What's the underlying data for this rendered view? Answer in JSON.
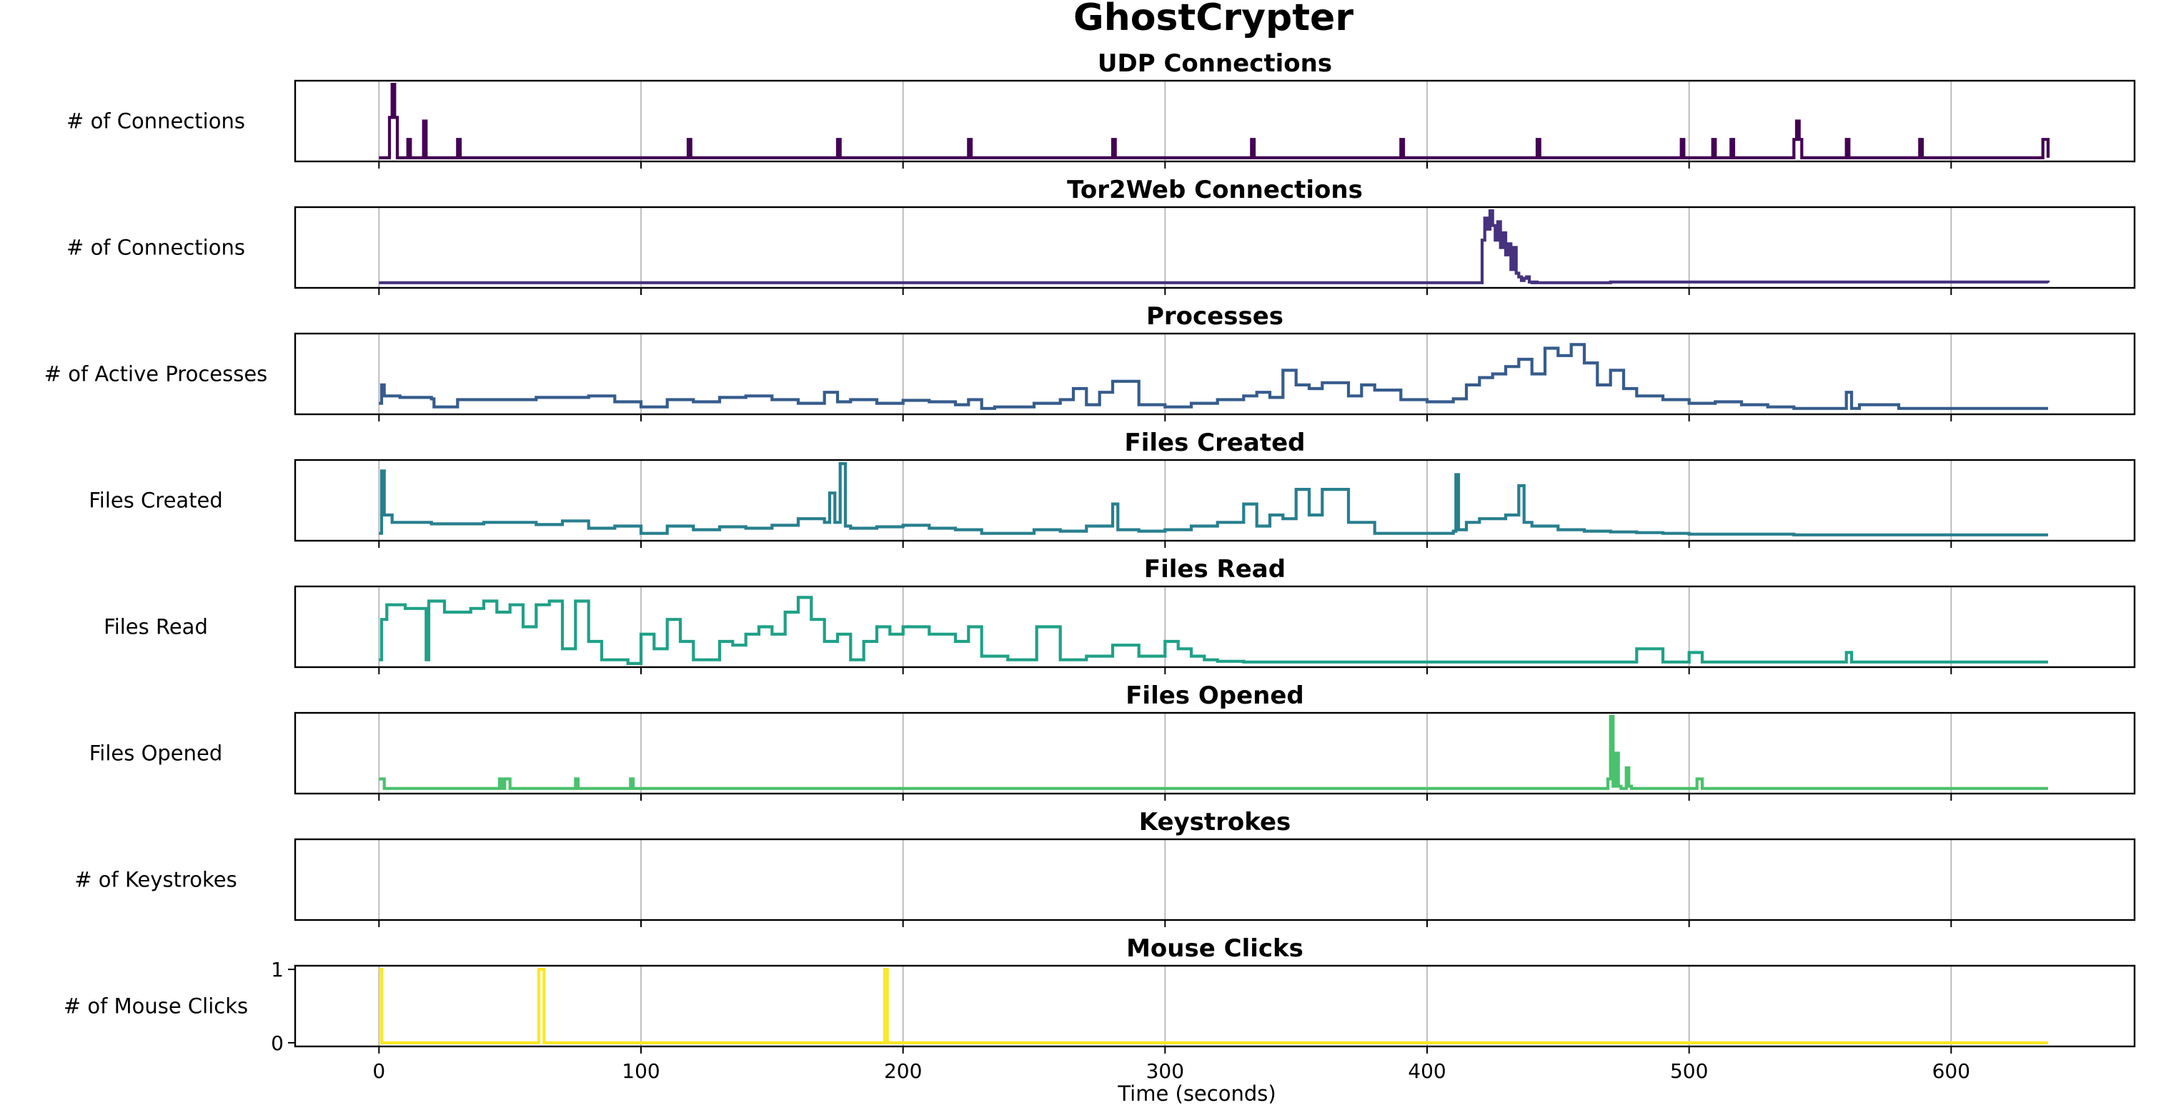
{
  "figure": {
    "title": "GhostCrypter",
    "xlabel": "Time (seconds)",
    "xlim": [
      -32,
      670
    ],
    "xticks": [
      0,
      100,
      200,
      300,
      400,
      500,
      600
    ],
    "grid": true,
    "sharex": true
  },
  "chart_data": [
    {
      "type": "line",
      "title": "UDP Connections",
      "ylabel": "# of Connections",
      "color": "#440154",
      "ylim": [
        -0.05,
        1.05
      ],
      "x": [
        0,
        4,
        5,
        6,
        7,
        11,
        12,
        17,
        18,
        30,
        31,
        118,
        119,
        175,
        176,
        225,
        226,
        280,
        281,
        333,
        334,
        390,
        391,
        442,
        443,
        497,
        498,
        509,
        510,
        516,
        517,
        540,
        541,
        542,
        543,
        544,
        560,
        561,
        588,
        589,
        635,
        636,
        637
      ],
      "values": [
        0,
        0.55,
        1,
        0.55,
        0,
        0.25,
        0,
        0.5,
        0,
        0.25,
        0,
        0.25,
        0,
        0.25,
        0,
        0.25,
        0,
        0.25,
        0,
        0.25,
        0,
        0.25,
        0,
        0.25,
        0,
        0.25,
        0,
        0.25,
        0,
        0.25,
        0,
        0.25,
        0.5,
        0.25,
        0,
        0,
        0.25,
        0,
        0.25,
        0,
        0.25,
        0.25,
        0
      ]
    },
    {
      "type": "line",
      "title": "Tor2Web Connections",
      "ylabel": "# of Connections",
      "color": "#46327e",
      "ylim": [
        -0.05,
        1.05
      ],
      "x": [
        0,
        420,
        421,
        422,
        423,
        424,
        425,
        426,
        427,
        428,
        429,
        430,
        431,
        432,
        433,
        434,
        435,
        436,
        437,
        438,
        439,
        440,
        441,
        442,
        443,
        470,
        637
      ],
      "values": [
        0.02,
        0.02,
        0.6,
        0.9,
        0.75,
        1.0,
        0.8,
        0.6,
        0.85,
        0.5,
        0.7,
        0.4,
        0.55,
        0.2,
        0.5,
        0.15,
        0.1,
        0.05,
        0.08,
        0.1,
        0.03,
        0.02,
        0.03,
        0.02,
        0.02,
        0.03,
        0.02
      ]
    },
    {
      "type": "line",
      "title": "Processes",
      "ylabel": "# of Active Processes",
      "color": "#365c8d",
      "ylim": [
        -0.05,
        1.05
      ],
      "x": [
        0,
        1,
        2,
        8,
        20,
        21,
        30,
        60,
        80,
        90,
        100,
        110,
        120,
        130,
        140,
        150,
        160,
        170,
        175,
        180,
        190,
        200,
        210,
        220,
        225,
        230,
        235,
        250,
        260,
        265,
        270,
        275,
        280,
        290,
        300,
        310,
        320,
        330,
        335,
        340,
        345,
        350,
        355,
        360,
        370,
        375,
        380,
        390,
        400,
        410,
        415,
        420,
        425,
        430,
        435,
        440,
        445,
        450,
        455,
        460,
        465,
        470,
        475,
        480,
        490,
        500,
        510,
        520,
        530,
        540,
        560,
        562,
        565,
        580,
        600,
        637
      ],
      "values": [
        0.1,
        0.35,
        0.2,
        0.18,
        0.16,
        0.05,
        0.15,
        0.18,
        0.2,
        0.12,
        0.05,
        0.15,
        0.12,
        0.18,
        0.2,
        0.15,
        0.1,
        0.25,
        0.12,
        0.15,
        0.1,
        0.14,
        0.12,
        0.08,
        0.15,
        0.03,
        0.05,
        0.1,
        0.15,
        0.3,
        0.08,
        0.25,
        0.4,
        0.08,
        0.05,
        0.1,
        0.15,
        0.2,
        0.25,
        0.18,
        0.55,
        0.35,
        0.3,
        0.38,
        0.2,
        0.35,
        0.28,
        0.15,
        0.12,
        0.16,
        0.35,
        0.45,
        0.5,
        0.6,
        0.7,
        0.5,
        0.85,
        0.75,
        0.9,
        0.65,
        0.35,
        0.55,
        0.3,
        0.2,
        0.15,
        0.1,
        0.12,
        0.08,
        0.05,
        0.03,
        0.25,
        0.03,
        0.08,
        0.03,
        0.03,
        0.03
      ]
    },
    {
      "type": "line",
      "title": "Files Created",
      "ylabel": "Files Created",
      "color": "#277f8e",
      "ylim": [
        -0.05,
        1.05
      ],
      "x": [
        0,
        1,
        2,
        5,
        20,
        40,
        60,
        70,
        80,
        90,
        100,
        110,
        120,
        130,
        140,
        150,
        160,
        170,
        172,
        174,
        176,
        178,
        180,
        190,
        200,
        210,
        220,
        230,
        240,
        250,
        260,
        270,
        280,
        282,
        290,
        300,
        310,
        320,
        330,
        335,
        340,
        345,
        350,
        355,
        360,
        370,
        380,
        390,
        400,
        410,
        411,
        412,
        415,
        420,
        430,
        435,
        437,
        440,
        450,
        460,
        470,
        480,
        490,
        500,
        520,
        540,
        560,
        580,
        600,
        637
      ],
      "values": [
        0.05,
        0.9,
        0.3,
        0.2,
        0.18,
        0.2,
        0.17,
        0.22,
        0.12,
        0.15,
        0.05,
        0.15,
        0.1,
        0.14,
        0.12,
        0.16,
        0.25,
        0.2,
        0.6,
        0.2,
        1.0,
        0.15,
        0.12,
        0.14,
        0.16,
        0.12,
        0.1,
        0.05,
        0.05,
        0.1,
        0.08,
        0.15,
        0.45,
        0.1,
        0.08,
        0.1,
        0.15,
        0.2,
        0.45,
        0.15,
        0.3,
        0.25,
        0.65,
        0.3,
        0.65,
        0.2,
        0.05,
        0.05,
        0.05,
        0.08,
        0.85,
        0.1,
        0.2,
        0.25,
        0.3,
        0.7,
        0.2,
        0.15,
        0.1,
        0.08,
        0.07,
        0.06,
        0.05,
        0.04,
        0.04,
        0.03,
        0.03,
        0.03,
        0.03,
        0.03
      ]
    },
    {
      "type": "line",
      "title": "Files Read",
      "ylabel": "Files Read",
      "color": "#1fa187",
      "ylim": [
        -0.05,
        1.05
      ],
      "x": [
        0,
        1,
        3,
        10,
        18,
        19,
        25,
        35,
        40,
        45,
        50,
        55,
        60,
        65,
        70,
        75,
        80,
        85,
        95,
        100,
        105,
        110,
        115,
        120,
        130,
        135,
        140,
        145,
        150,
        155,
        160,
        165,
        170,
        175,
        180,
        185,
        190,
        195,
        200,
        210,
        220,
        225,
        230,
        240,
        250,
        251,
        260,
        270,
        280,
        290,
        300,
        305,
        310,
        315,
        320,
        330,
        340,
        360,
        400,
        430,
        460,
        470,
        480,
        490,
        500,
        505,
        510,
        540,
        560,
        562,
        600,
        637
      ],
      "values": [
        0.05,
        0.6,
        0.8,
        0.75,
        0.05,
        0.85,
        0.7,
        0.75,
        0.85,
        0.7,
        0.8,
        0.5,
        0.8,
        0.85,
        0.2,
        0.85,
        0.3,
        0.05,
        0.0,
        0.4,
        0.2,
        0.6,
        0.3,
        0.05,
        0.3,
        0.25,
        0.4,
        0.5,
        0.4,
        0.7,
        0.9,
        0.6,
        0.3,
        0.4,
        0.05,
        0.3,
        0.5,
        0.4,
        0.5,
        0.4,
        0.3,
        0.5,
        0.1,
        0.05,
        0.05,
        0.5,
        0.05,
        0.1,
        0.25,
        0.1,
        0.3,
        0.2,
        0.1,
        0.05,
        0.03,
        0.02,
        0.02,
        0.02,
        0.02,
        0.02,
        0.02,
        0.02,
        0.2,
        0.02,
        0.15,
        0.02,
        0.02,
        0.02,
        0.15,
        0.02,
        0.02,
        0.02
      ]
    },
    {
      "type": "line",
      "title": "Files Opened",
      "ylabel": "Files Opened",
      "color": "#4ac16d",
      "ylim": [
        -0.05,
        1.05
      ],
      "x": [
        0,
        1,
        2,
        45,
        46,
        47,
        48,
        49,
        50,
        74,
        75,
        76,
        95,
        96,
        97,
        468,
        469,
        470,
        471,
        472,
        473,
        474,
        475,
        476,
        477,
        478,
        502,
        503,
        504,
        505,
        637
      ],
      "values": [
        0.15,
        0.15,
        0.02,
        0.02,
        0.15,
        0.02,
        0.15,
        0.15,
        0.02,
        0.02,
        0.15,
        0.02,
        0.02,
        0.15,
        0.02,
        0.02,
        0.15,
        1.0,
        0.05,
        0.5,
        0.05,
        0.02,
        0.02,
        0.3,
        0.05,
        0.02,
        0.02,
        0.15,
        0.15,
        0.02,
        0.02
      ]
    },
    {
      "type": "line",
      "title": "Keystrokes",
      "ylabel": "# of Keystrokes",
      "color": "#a0da39",
      "ylim": [
        -0.05,
        1.05
      ],
      "x": [],
      "values": []
    },
    {
      "type": "line",
      "title": "Mouse Clicks",
      "ylabel": "# of Mouse Clicks",
      "color": "#fde725",
      "ylim": [
        -0.05,
        1.05
      ],
      "yticks": [
        0,
        1
      ],
      "x": [
        0,
        1,
        60,
        61,
        62,
        63,
        192,
        193,
        194,
        637
      ],
      "values": [
        1,
        0,
        0,
        1,
        1,
        0,
        0,
        1,
        0,
        0
      ]
    }
  ]
}
